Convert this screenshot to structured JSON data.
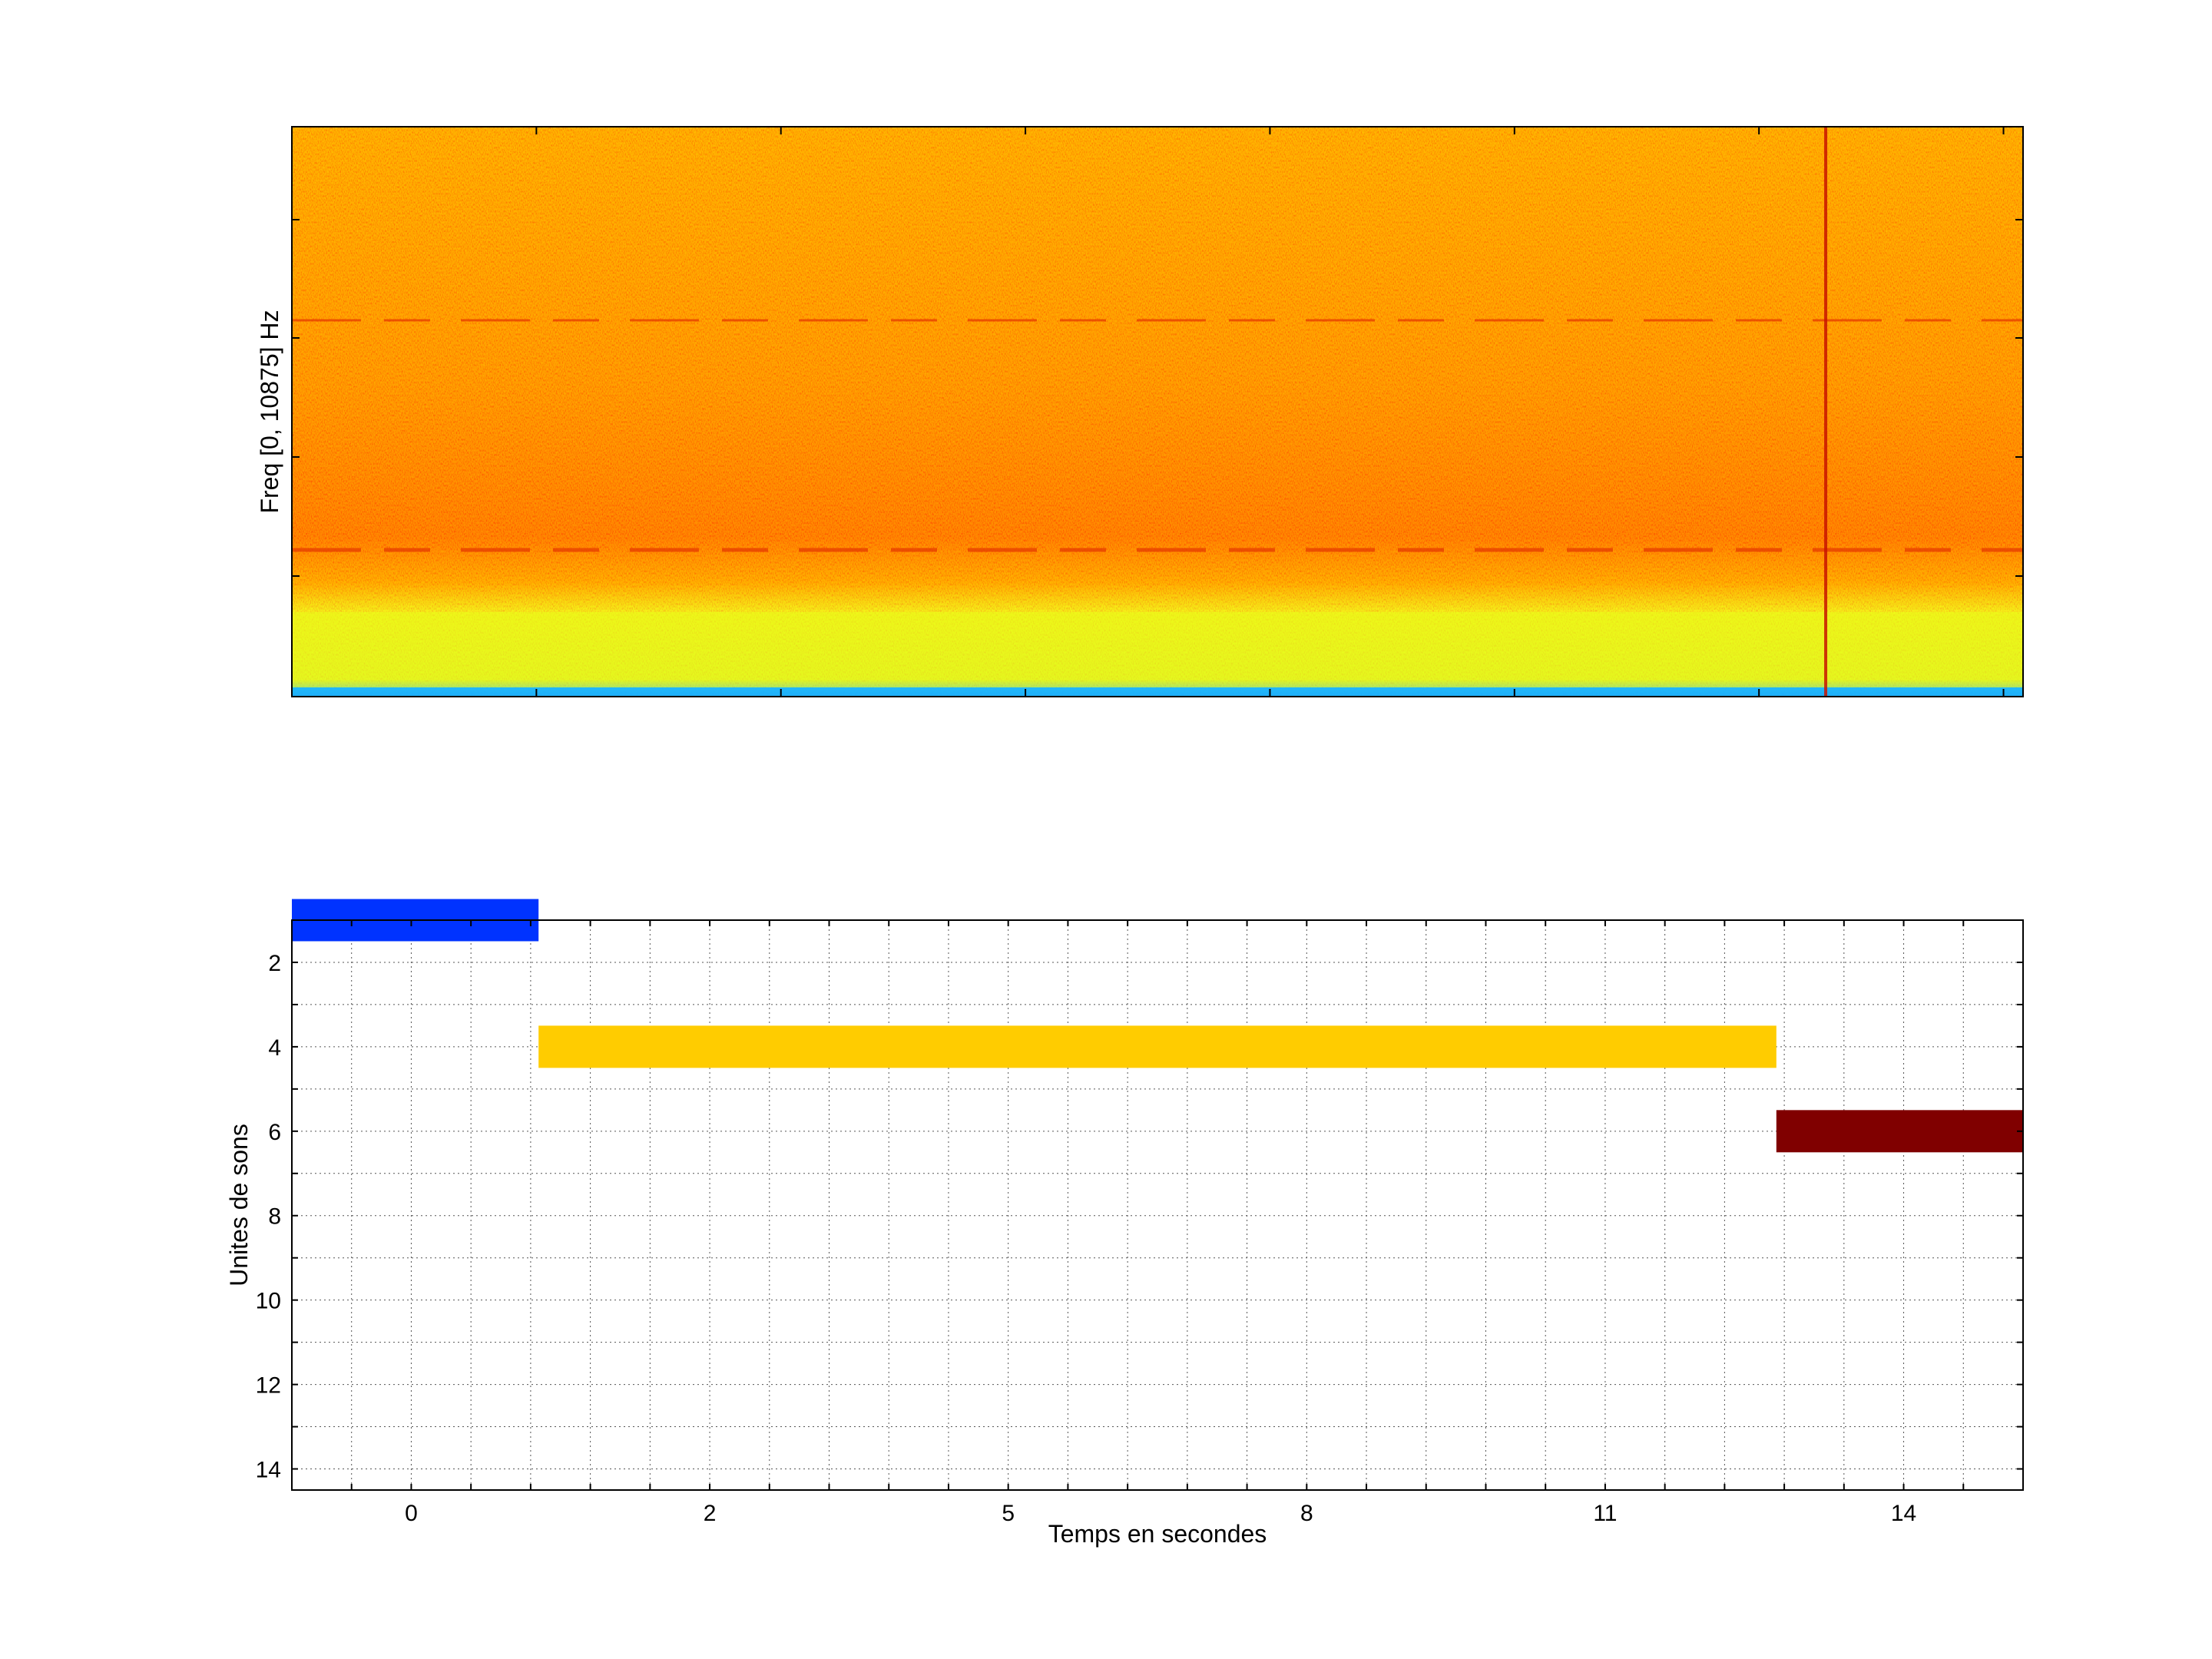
{
  "chart_data": [
    {
      "type": "heatmap",
      "title": "",
      "xlabel": "",
      "ylabel": "Freq [0, 10875] Hz",
      "colormap": "jet",
      "background_color": "#ffa500",
      "features": [
        {
          "kind": "low-frequency band",
          "color": "#e8ff1a"
        },
        {
          "kind": "harmonic line",
          "color": "#e63a00"
        },
        {
          "kind": "harmonic line",
          "color": "#e63a00"
        },
        {
          "kind": "transient",
          "color": "#c81400"
        }
      ]
    },
    {
      "type": "bar",
      "orientation": "horizontal",
      "title": "",
      "xlabel": "Temps en secondes",
      "ylabel": "Unites de sons",
      "x_tick_labels": [
        "0",
        "2",
        "5",
        "8",
        "11",
        "14"
      ],
      "y_tick_labels": [
        "2",
        "4",
        "6",
        "8",
        "10",
        "12",
        "14"
      ],
      "ylim": [
        14.5,
        1
      ],
      "y_reversed": true,
      "grid": true,
      "segments": [
        {
          "unit": 1,
          "start_fraction": 0.0,
          "end_fraction": 0.1425,
          "color": "#0033ff"
        },
        {
          "unit": 4,
          "start_fraction": 0.1425,
          "end_fraction": 0.8575,
          "color": "#ffcc00"
        },
        {
          "unit": 6,
          "start_fraction": 0.8575,
          "end_fraction": 1.0,
          "color": "#800000"
        }
      ]
    }
  ]
}
